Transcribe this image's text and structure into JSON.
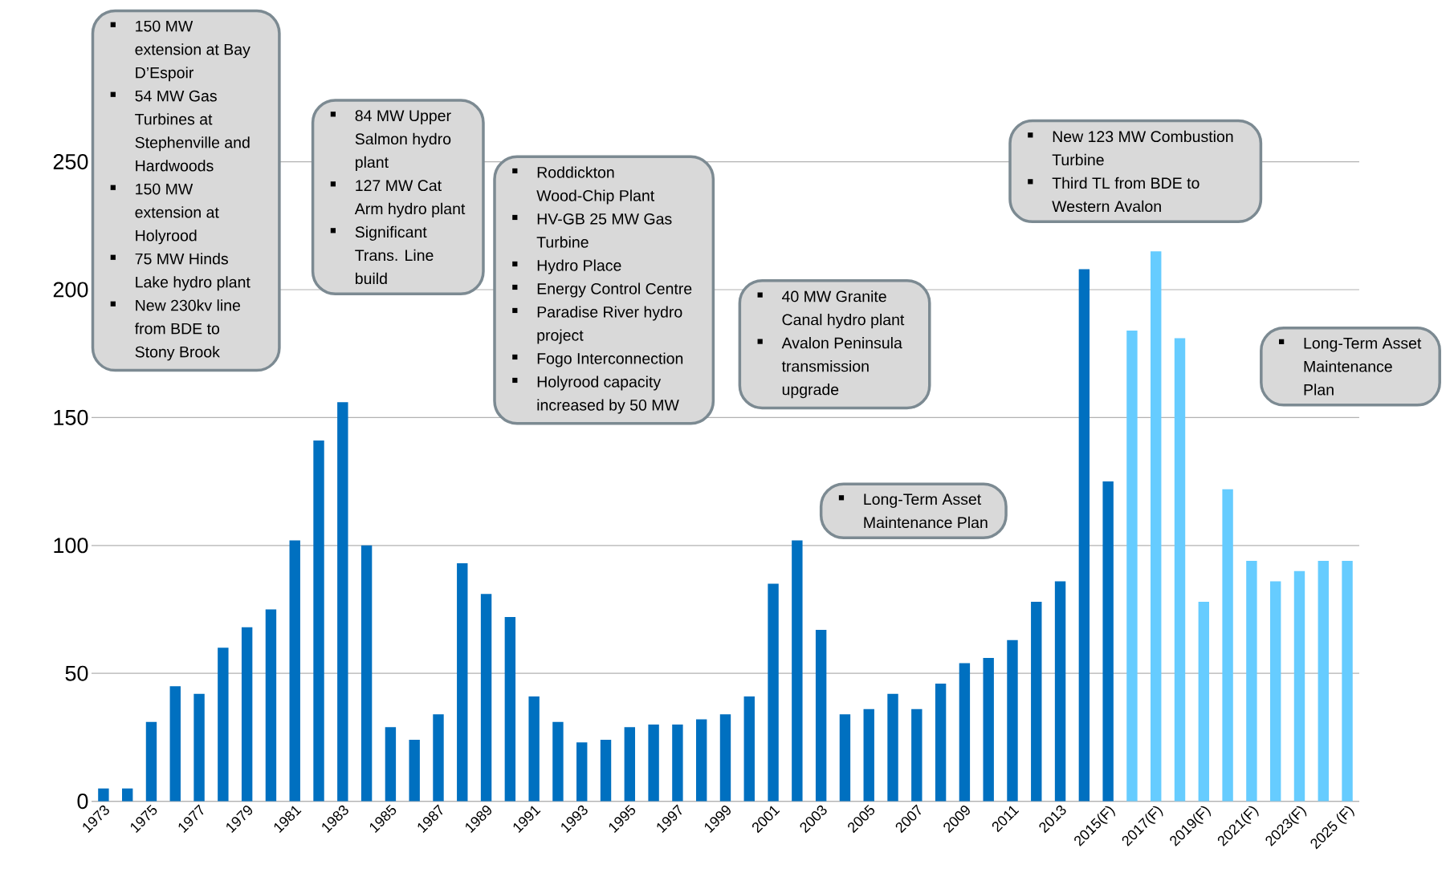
{
  "chart_data": {
    "type": "bar",
    "categories": [
      "1973",
      null,
      "1975",
      null,
      "1977",
      null,
      "1979",
      null,
      "1981",
      null,
      "1983",
      null,
      "1985",
      null,
      "1987",
      null,
      "1989",
      null,
      "1991",
      null,
      "1993",
      null,
      "1995",
      null,
      "1997",
      null,
      "1999",
      null,
      "2001",
      null,
      "2003",
      null,
      "2005",
      null,
      "2007",
      null,
      "2009",
      null,
      "2011",
      null,
      "2013",
      null,
      "2015(F)",
      null,
      "2017(F)",
      null,
      "2019(F)",
      null,
      "2021(F)",
      null,
      "2023(F)",
      null,
      "2025 (F)"
    ],
    "values": [
      5,
      5,
      31,
      45,
      42,
      60,
      68,
      75,
      102,
      141,
      156,
      100,
      29,
      24,
      34,
      93,
      81,
      72,
      41,
      31,
      23,
      24,
      29,
      30,
      30,
      32,
      34,
      41,
      85,
      102,
      67,
      34,
      36,
      42,
      36,
      46,
      54,
      56,
      63,
      78,
      86,
      208,
      125,
      184,
      215,
      181,
      78,
      122,
      94,
      86,
      90,
      94,
      94
    ],
    "colors": [
      "#0070c0",
      "#0070c0",
      "#0070c0",
      "#0070c0",
      "#0070c0",
      "#0070c0",
      "#0070c0",
      "#0070c0",
      "#0070c0",
      "#0070c0",
      "#0070c0",
      "#0070c0",
      "#0070c0",
      "#0070c0",
      "#0070c0",
      "#0070c0",
      "#0070c0",
      "#0070c0",
      "#0070c0",
      "#0070c0",
      "#0070c0",
      "#0070c0",
      "#0070c0",
      "#0070c0",
      "#0070c0",
      "#0070c0",
      "#0070c0",
      "#0070c0",
      "#0070c0",
      "#0070c0",
      "#0070c0",
      "#0070c0",
      "#0070c0",
      "#0070c0",
      "#0070c0",
      "#0070c0",
      "#0070c0",
      "#0070c0",
      "#0070c0",
      "#0070c0",
      "#0070c0",
      "#0070c0",
      "#0070c0",
      "#66ccff",
      "#66ccff",
      "#66ccff",
      "#66ccff",
      "#66ccff",
      "#66ccff",
      "#66ccff",
      "#66ccff",
      "#66ccff",
      "#66ccff"
    ],
    "ylim": [
      0,
      250
    ],
    "yticks": [
      0,
      50,
      100,
      150,
      200,
      250
    ],
    "grid": "y",
    "annotations": [
      "150 MW extension at Bay D’Espoir",
      "54 MW Gas Turbines at Stephenville and Hardwoods",
      "150 MW extension at Holyrood",
      "75 MW Hinds Lake hydro plant",
      "New 230kv line from BDE to Stony Brook",
      "84 MW Upper Salmon hydro plant",
      "127 MW Cat Arm hydro plant",
      "Significant Trans. Line build",
      "Roddickton Wood-Chip Plant",
      "HV-GB 25 MW Gas Turbine",
      "Hydro Place",
      "Energy Control Centre",
      "Paradise River hydro project",
      "Fogo Interconnection",
      "Holyrood capacity increased by 50 MW",
      "40 MW Granite Canal hydro plant",
      "Avalon Peninsula transmission upgrade",
      "Long-Term Asset Maintenance Plan",
      "New 123 MW Combustion Turbine",
      "Third TL from BDE to Western Avalon",
      "Long-Term Asset Maintenance Plan"
    ]
  }
}
